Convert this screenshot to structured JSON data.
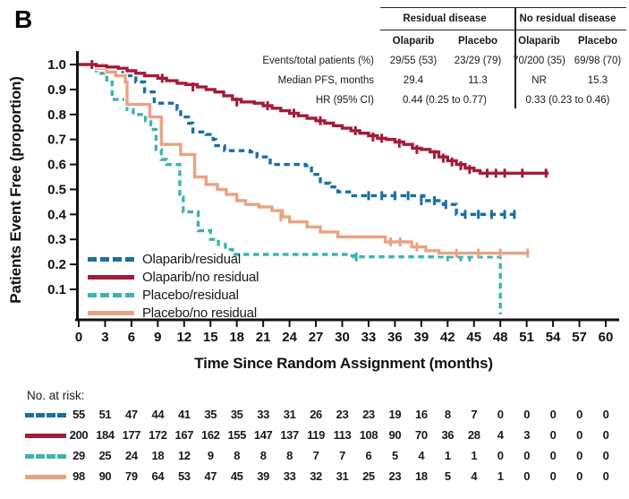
{
  "panel_label": "B",
  "colors": {
    "olaparib_residual": "#1B6FA3",
    "olaparib_no_residual": "#A31C38",
    "placebo_residual": "#3DB4AF",
    "placebo_no_residual": "#E9A382",
    "axis": "#111111",
    "text": "#1a1a1a"
  },
  "stats": {
    "group_headers": [
      "Residual disease",
      "No residual disease"
    ],
    "col_headers": [
      "Olaparib",
      "Placebo",
      "Olaparib",
      "Placebo"
    ],
    "row_labels": [
      "Events/total patients (%)",
      "Median PFS, months",
      "HR (95% CI)"
    ],
    "rows": {
      "events": [
        "29/55 (53)",
        "23/29 (79)",
        "70/200 (35)",
        "69/98 (70)"
      ],
      "median": [
        "29.4",
        "11.3",
        "NR",
        "15.3"
      ],
      "hr": [
        "0.44 (0.25 to 0.77)",
        "0.33 (0.23 to 0.46)"
      ]
    }
  },
  "risk_table": {
    "title": "No. at risk:",
    "times": [
      0,
      3,
      6,
      9,
      12,
      15,
      18,
      21,
      24,
      27,
      30,
      33,
      36,
      39,
      42,
      45,
      48,
      51,
      54,
      57,
      60
    ],
    "rows": [
      {
        "name": "Olaparib/residual",
        "color": "#1B6FA3",
        "dashed": true,
        "values": [
          55,
          51,
          47,
          44,
          41,
          35,
          35,
          33,
          31,
          26,
          23,
          23,
          19,
          16,
          8,
          7,
          0,
          0,
          0,
          0,
          0
        ]
      },
      {
        "name": "Olaparib/no residual",
        "color": "#A31C38",
        "dashed": false,
        "values": [
          200,
          184,
          177,
          172,
          167,
          162,
          155,
          147,
          137,
          119,
          113,
          108,
          90,
          70,
          36,
          28,
          4,
          3,
          0,
          0,
          0
        ]
      },
      {
        "name": "Placebo/residual",
        "color": "#3DB4AF",
        "dashed": true,
        "values": [
          29,
          25,
          24,
          18,
          12,
          9,
          8,
          8,
          8,
          7,
          7,
          6,
          5,
          4,
          1,
          1,
          0,
          0,
          0,
          0,
          0
        ]
      },
      {
        "name": "Placebo/no residual",
        "color": "#E9A382",
        "dashed": false,
        "values": [
          98,
          90,
          79,
          64,
          53,
          47,
          45,
          39,
          33,
          32,
          31,
          25,
          23,
          18,
          5,
          4,
          1,
          0,
          0,
          0,
          0
        ]
      }
    ]
  },
  "chart_data": {
    "type": "line",
    "subtype": "kaplan-meier-step",
    "xlabel": "Time Since Random Assignment (months)",
    "ylabel": "Patients Event Free (proportion)",
    "xlim": [
      0,
      60
    ],
    "ylim": [
      0,
      1.02
    ],
    "xticks": [
      0,
      3,
      6,
      9,
      12,
      15,
      18,
      21,
      24,
      27,
      30,
      33,
      36,
      39,
      42,
      45,
      48,
      51,
      54,
      57,
      60
    ],
    "ytick_labels": [
      "0.1",
      "0.2",
      "0.3",
      "0.4",
      "0.5",
      "0.6",
      "0.7",
      "0.8",
      "0.9",
      "1.0"
    ],
    "grid": false,
    "legend_position": "lower-left-inside",
    "legend": [
      "Olaparib/residual",
      "Olaparib/no residual",
      "Placebo/residual",
      "Placebo/no residual"
    ],
    "series": [
      {
        "name": "Olaparib/residual",
        "color": "#1B6FA3",
        "dashed": true,
        "points": [
          [
            0,
            1.0
          ],
          [
            2.8,
            0.98
          ],
          [
            5,
            0.955
          ],
          [
            6.5,
            0.93
          ],
          [
            7.5,
            0.89
          ],
          [
            8.6,
            0.845
          ],
          [
            11.2,
            0.82
          ],
          [
            11.6,
            0.79
          ],
          [
            12.5,
            0.765
          ],
          [
            13,
            0.73
          ],
          [
            14.5,
            0.72
          ],
          [
            15.3,
            0.7
          ],
          [
            15.6,
            0.675
          ],
          [
            16.6,
            0.655
          ],
          [
            19.5,
            0.65
          ],
          [
            20.3,
            0.63
          ],
          [
            21.8,
            0.6
          ],
          [
            25.8,
            0.595
          ],
          [
            26.5,
            0.56
          ],
          [
            27.5,
            0.525
          ],
          [
            28.6,
            0.51
          ],
          [
            29.5,
            0.49
          ],
          [
            31,
            0.475
          ],
          [
            39.3,
            0.455
          ],
          [
            41.5,
            0.44
          ],
          [
            43,
            0.4
          ],
          [
            49.8,
            0.4
          ]
        ],
        "censors": [
          [
            2,
            0.98
          ],
          [
            33,
            0.475
          ],
          [
            34.5,
            0.475
          ],
          [
            36,
            0.475
          ],
          [
            37.5,
            0.475
          ],
          [
            39,
            0.455
          ],
          [
            40.5,
            0.455
          ],
          [
            41.8,
            0.44
          ],
          [
            44,
            0.4
          ],
          [
            45.5,
            0.4
          ],
          [
            47,
            0.4
          ],
          [
            48.5,
            0.4
          ],
          [
            49.6,
            0.4
          ]
        ]
      },
      {
        "name": "Olaparib/no residual",
        "color": "#A31C38",
        "dashed": false,
        "points": [
          [
            0,
            1.0
          ],
          [
            2,
            0.995
          ],
          [
            3.2,
            0.99
          ],
          [
            4.5,
            0.985
          ],
          [
            5.5,
            0.975
          ],
          [
            6.5,
            0.965
          ],
          [
            7.5,
            0.955
          ],
          [
            9,
            0.945
          ],
          [
            10,
            0.935
          ],
          [
            11.2,
            0.925
          ],
          [
            12.2,
            0.92
          ],
          [
            13.5,
            0.91
          ],
          [
            14.5,
            0.9
          ],
          [
            15.5,
            0.89
          ],
          [
            16.5,
            0.875
          ],
          [
            17.5,
            0.86
          ],
          [
            18.5,
            0.85
          ],
          [
            20,
            0.845
          ],
          [
            21,
            0.835
          ],
          [
            22,
            0.825
          ],
          [
            23,
            0.815
          ],
          [
            24,
            0.805
          ],
          [
            25,
            0.795
          ],
          [
            26,
            0.785
          ],
          [
            27,
            0.775
          ],
          [
            28,
            0.765
          ],
          [
            29,
            0.755
          ],
          [
            30,
            0.745
          ],
          [
            31,
            0.735
          ],
          [
            32,
            0.725
          ],
          [
            33,
            0.715
          ],
          [
            34,
            0.705
          ],
          [
            35,
            0.7
          ],
          [
            36,
            0.69
          ],
          [
            37,
            0.68
          ],
          [
            38,
            0.665
          ],
          [
            39,
            0.66
          ],
          [
            40,
            0.65
          ],
          [
            41,
            0.63
          ],
          [
            42,
            0.615
          ],
          [
            43,
            0.6
          ],
          [
            44,
            0.585
          ],
          [
            45,
            0.575
          ],
          [
            45.7,
            0.565
          ],
          [
            53.5,
            0.565
          ]
        ],
        "censors": [
          [
            1.5,
            1.0
          ],
          [
            9.5,
            0.945
          ],
          [
            13,
            0.91
          ],
          [
            18,
            0.85
          ],
          [
            21.5,
            0.835
          ],
          [
            24.5,
            0.805
          ],
          [
            27.5,
            0.775
          ],
          [
            31.5,
            0.735
          ],
          [
            33.5,
            0.71
          ],
          [
            34.5,
            0.705
          ],
          [
            36.5,
            0.685
          ],
          [
            38.5,
            0.66
          ],
          [
            40.5,
            0.64
          ],
          [
            41.5,
            0.625
          ],
          [
            42.5,
            0.61
          ],
          [
            43.5,
            0.595
          ],
          [
            44.5,
            0.58
          ],
          [
            46.5,
            0.565
          ],
          [
            47.5,
            0.565
          ],
          [
            48.5,
            0.565
          ],
          [
            50.5,
            0.565
          ],
          [
            53.2,
            0.565
          ]
        ]
      },
      {
        "name": "Placebo/residual",
        "color": "#3DB4AF",
        "dashed": true,
        "points": [
          [
            0,
            1.0
          ],
          [
            2,
            0.965
          ],
          [
            3.2,
            0.93
          ],
          [
            3.8,
            0.86
          ],
          [
            5.5,
            0.82
          ],
          [
            6.2,
            0.8
          ],
          [
            7.6,
            0.775
          ],
          [
            8.2,
            0.74
          ],
          [
            8.8,
            0.66
          ],
          [
            9.4,
            0.62
          ],
          [
            10,
            0.6
          ],
          [
            11.5,
            0.47
          ],
          [
            11.9,
            0.41
          ],
          [
            13.6,
            0.335
          ],
          [
            15,
            0.3
          ],
          [
            15.9,
            0.28
          ],
          [
            16.7,
            0.26
          ],
          [
            17.5,
            0.24
          ],
          [
            30.8,
            0.235
          ],
          [
            31.3,
            0.23
          ],
          [
            48,
            0.23
          ],
          [
            48,
            0.0
          ]
        ],
        "censors": [
          [
            31.6,
            0.23
          ],
          [
            42,
            0.23
          ],
          [
            43.5,
            0.23
          ],
          [
            44.5,
            0.23
          ]
        ]
      },
      {
        "name": "Placebo/no residual",
        "color": "#E9A382",
        "dashed": false,
        "points": [
          [
            0,
            1.0
          ],
          [
            2,
            0.985
          ],
          [
            3.2,
            0.97
          ],
          [
            4.2,
            0.955
          ],
          [
            5.3,
            0.93
          ],
          [
            5.5,
            0.84
          ],
          [
            8.1,
            0.79
          ],
          [
            9.4,
            0.68
          ],
          [
            11.6,
            0.64
          ],
          [
            13.2,
            0.55
          ],
          [
            14.5,
            0.52
          ],
          [
            15.8,
            0.5
          ],
          [
            16.8,
            0.48
          ],
          [
            18,
            0.455
          ],
          [
            19,
            0.44
          ],
          [
            20.5,
            0.43
          ],
          [
            22,
            0.415
          ],
          [
            23.2,
            0.39
          ],
          [
            24,
            0.37
          ],
          [
            26,
            0.35
          ],
          [
            27.5,
            0.33
          ],
          [
            29.5,
            0.31
          ],
          [
            34.9,
            0.29
          ],
          [
            37.9,
            0.27
          ],
          [
            39.5,
            0.255
          ],
          [
            41,
            0.245
          ],
          [
            51.3,
            0.245
          ]
        ],
        "censors": [
          [
            23,
            0.39
          ],
          [
            35.5,
            0.29
          ],
          [
            36.6,
            0.29
          ],
          [
            38.5,
            0.27
          ],
          [
            43,
            0.245
          ],
          [
            45.5,
            0.245
          ],
          [
            48,
            0.245
          ],
          [
            51.1,
            0.245
          ]
        ]
      }
    ]
  }
}
